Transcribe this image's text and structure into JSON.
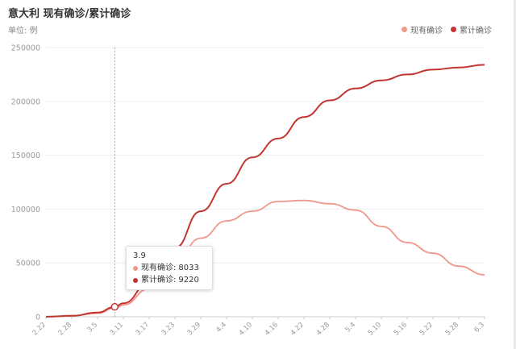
{
  "chart_data": {
    "type": "line",
    "title": "意大利 现有确诊/累计确诊",
    "subtitle": "单位: 例",
    "xlabel": "",
    "ylabel": "",
    "ylim": [
      0,
      250000
    ],
    "yticks": [
      "0",
      "50000",
      "100000",
      "150000",
      "200000",
      "250000"
    ],
    "xticks": [
      "2.22",
      "2.28",
      "3.5",
      "3.11",
      "3.17",
      "3.23",
      "3.29",
      "4.4",
      "4.10",
      "4.16",
      "4.22",
      "4.28",
      "5.4",
      "5.10",
      "5.16",
      "5.22",
      "5.28",
      "6.3"
    ],
    "grid": true,
    "legend": "top-right",
    "series": [
      {
        "name": "现有确诊",
        "color": "#f0968a",
        "x": [
          "2.22",
          "2.28",
          "3.5",
          "3.9",
          "3.11",
          "3.17",
          "3.23",
          "3.29",
          "4.4",
          "4.10",
          "4.16",
          "4.22",
          "4.28",
          "5.4",
          "5.10",
          "5.16",
          "5.22",
          "5.28",
          "6.3"
        ],
        "values": [
          100,
          900,
          3300,
          8033,
          11000,
          26000,
          51000,
          73000,
          89000,
          98000,
          107000,
          108000,
          105000,
          99000,
          84000,
          69000,
          59000,
          47000,
          39000
        ]
      },
      {
        "name": "累计确诊",
        "color": "#c23531",
        "x": [
          "2.22",
          "2.28",
          "3.5",
          "3.9",
          "3.11",
          "3.17",
          "3.23",
          "3.29",
          "4.4",
          "4.10",
          "4.16",
          "4.22",
          "4.28",
          "5.4",
          "5.10",
          "5.16",
          "5.22",
          "5.28",
          "6.3"
        ],
        "values": [
          100,
          900,
          3900,
          9220,
          12500,
          31500,
          64000,
          98000,
          123500,
          148000,
          165500,
          185500,
          201000,
          212000,
          219500,
          225000,
          229500,
          231500,
          234000
        ]
      }
    ],
    "tooltip": {
      "x": "3.9",
      "rows": [
        {
          "series": "现有确诊",
          "value": "8033"
        },
        {
          "series": "累计确诊",
          "value": "9220"
        }
      ]
    }
  }
}
